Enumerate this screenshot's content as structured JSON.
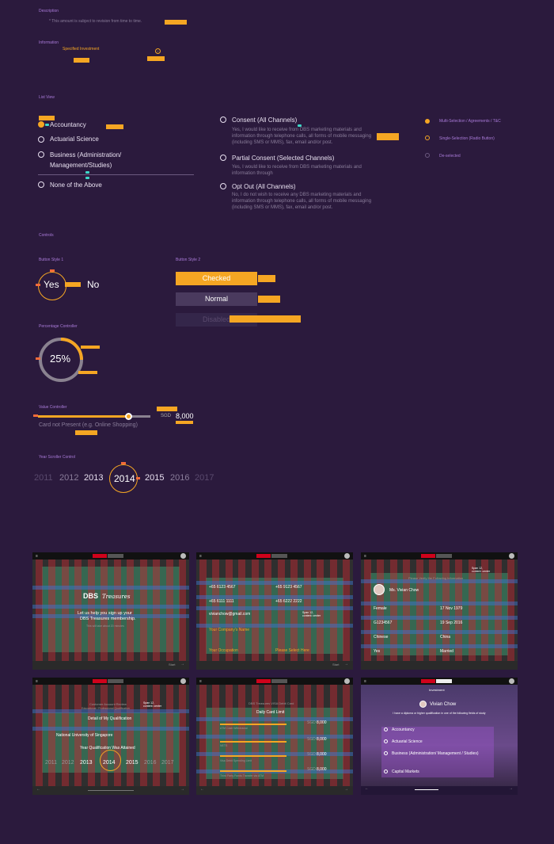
{
  "description": {
    "title": "Description",
    "text": "* This amount is subject to revision from time to time."
  },
  "information": {
    "title": "Information",
    "label": "Specified Investment",
    "info_icon": "info-icon"
  },
  "list_view": {
    "title": "List View",
    "items": [
      {
        "label": "Accountancy",
        "selected": true
      },
      {
        "label": "Actuarial Science",
        "selected": false
      },
      {
        "label": "Business (Administration/",
        "selected": false
      },
      {
        "label": "None of the Above",
        "selected": false
      }
    ],
    "business_line2": "Management/Studies)"
  },
  "consents": [
    {
      "title": "Consent (All Channels)",
      "text": "Yes, I would like to receive from DBS marketing materials and information through telephone calls, all forms of mobile messaging (including SMS or MMS), fax, email and/or post."
    },
    {
      "title": "Partial Consent (Selected Channels)",
      "text": "Yes, I would like to receive from DBS marketing materials and information through"
    },
    {
      "title": "Opt Out (All Channels)",
      "text": "No, I do not wish to receive any DBS marketing materials and information through telephone calls, all forms of mobile messaging (including SMS or MMS), fax, email and/or post."
    }
  ],
  "legend": [
    {
      "label": "Multi-Selection / Agreements / T&C",
      "color": "#f5a623"
    },
    {
      "label": "Single-Selection (Radio Button)",
      "color": "#f5a623"
    },
    {
      "label": "De-selected",
      "color": "#6c5a80"
    }
  ],
  "controls": {
    "title": "Controls",
    "button_style_1": {
      "title": "Button Style 1",
      "yes": "Yes",
      "no": "No"
    },
    "button_style_2": {
      "title": "Button Style 2",
      "checked": "Checked",
      "normal": "Normal",
      "disabled": "Disabled"
    },
    "percentage": {
      "title": "Percentage Controller",
      "value": "25%",
      "fraction": 0.25
    },
    "value_controller": {
      "title": "Value Controller",
      "currency": "SGD",
      "amount": "8,000",
      "caption": "Card not Present (e.g. Online Shopping)",
      "fraction": 0.8
    },
    "year_scroller": {
      "title": "Year Scroller Control",
      "years": [
        "2011",
        "2012",
        "2013",
        "2014",
        "2015",
        "2016",
        "2017"
      ],
      "selected": "2014"
    }
  },
  "screens": {
    "s1": {
      "brand": "DBS",
      "brand_script": "Treasures",
      "line1": "Let us help you sign up your",
      "line2": "DBS Treasures membership.",
      "sub": "This will take about 20 minutes",
      "start": "Start"
    },
    "s2": {
      "phone1": "+65 6123 4567",
      "phone2": "+65 9123 4567",
      "phone3": "+65 6111 1111",
      "phone4": "+65 6222 2222",
      "email": "vivianchow@gmail.com",
      "company": "Your Company's Name",
      "occupation": "Your Occupation",
      "select": "Please Select Here",
      "start": "Start"
    },
    "s3": {
      "heading": "Please Verify the Following Information",
      "name": "Ms. Vivian Chow",
      "gender": "Female",
      "dob": "17 Nov 1979",
      "id": "G1234567",
      "date2": "19 Sep 2016",
      "nat1": "Chinese",
      "nat2": "China",
      "yes": "Yes",
      "married": "Married"
    },
    "s4": {
      "title": "Customer Account Review",
      "sub": "Educational / Professional Qualification",
      "detail": "Detail of My Qualification",
      "uni": "National University of Singapore",
      "attained": "Year Qualification Was Attained",
      "years": [
        "2011",
        "2012",
        "2013",
        "2014",
        "2015",
        "2016",
        "2017"
      ]
    },
    "s5": {
      "title": "DBS Treasures VISA Debit Card",
      "limit": "Daily Card Limit",
      "rows": [
        {
          "label": "ATM Cash Withdrawal",
          "currency": "SGD",
          "amount": "8,000"
        },
        {
          "label": "NETS",
          "currency": "SGD",
          "amount": "8,000"
        },
        {
          "label": "Visa Debit Spending Limit",
          "currency": "SGD",
          "amount": "8,000"
        },
        {
          "label": "Third Party Funds Transfer via ATM",
          "currency": "SGD",
          "amount": "8,000"
        }
      ]
    },
    "s6": {
      "header": "Investment",
      "name": "Vivian Chow",
      "question": "I have a diploma or higher qualification in one of the following fields of study",
      "options": [
        "Accountancy",
        "Actuarial Science",
        "Business (Administration/ Management / Studies)",
        "Capital Markets"
      ]
    }
  },
  "span_tag": "Span 12,\ncontent: center",
  "span_tag_left": "Span 6,\ncontent: left"
}
